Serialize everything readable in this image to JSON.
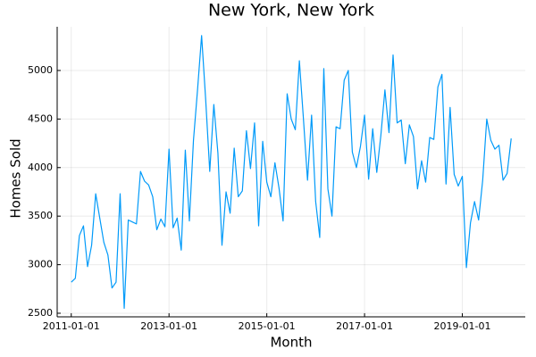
{
  "chart_data": {
    "type": "line",
    "title": "New York, New York",
    "x_label": "Month",
    "y_label": "Homes Sold",
    "x": [
      "2011-01-01",
      "2011-02-01",
      "2011-03-01",
      "2011-04-01",
      "2011-05-01",
      "2011-06-01",
      "2011-07-01",
      "2011-08-01",
      "2011-09-01",
      "2011-10-01",
      "2011-11-01",
      "2011-12-01",
      "2012-01-01",
      "2012-02-01",
      "2012-03-01",
      "2012-04-01",
      "2012-05-01",
      "2012-06-01",
      "2012-07-01",
      "2012-08-01",
      "2012-09-01",
      "2012-10-01",
      "2012-11-01",
      "2012-12-01",
      "2013-01-01",
      "2013-02-01",
      "2013-03-01",
      "2013-04-01",
      "2013-05-01",
      "2013-06-01",
      "2013-07-01",
      "2013-08-01",
      "2013-09-01",
      "2013-10-01",
      "2013-11-01",
      "2013-12-01",
      "2014-01-01",
      "2014-02-01",
      "2014-03-01",
      "2014-04-01",
      "2014-05-01",
      "2014-06-01",
      "2014-07-01",
      "2014-08-01",
      "2014-09-01",
      "2014-10-01",
      "2014-11-01",
      "2014-12-01",
      "2015-01-01",
      "2015-02-01",
      "2015-03-01",
      "2015-04-01",
      "2015-05-01",
      "2015-06-01",
      "2015-07-01",
      "2015-08-01",
      "2015-09-01",
      "2015-10-01",
      "2015-11-01",
      "2015-12-01",
      "2016-01-01",
      "2016-02-01",
      "2016-03-01",
      "2016-04-01",
      "2016-05-01",
      "2016-06-01",
      "2016-07-01",
      "2016-08-01",
      "2016-09-01",
      "2016-10-01",
      "2016-11-01",
      "2016-12-01",
      "2017-01-01",
      "2017-02-01",
      "2017-03-01",
      "2017-04-01",
      "2017-05-01",
      "2017-06-01",
      "2017-07-01",
      "2017-08-01",
      "2017-09-01",
      "2017-10-01",
      "2017-11-01",
      "2017-12-01",
      "2018-01-01",
      "2018-02-01",
      "2018-03-01",
      "2018-04-01",
      "2018-05-01",
      "2018-06-01",
      "2018-07-01",
      "2018-08-01",
      "2018-09-01",
      "2018-10-01",
      "2018-11-01",
      "2018-12-01",
      "2019-01-01",
      "2019-02-01",
      "2019-03-01",
      "2019-04-01",
      "2019-05-01",
      "2019-06-01",
      "2019-07-01",
      "2019-08-01",
      "2019-09-01",
      "2019-10-01",
      "2019-11-01",
      "2019-12-01",
      "2020-01-01"
    ],
    "values": [
      2820,
      2860,
      3300,
      3400,
      2980,
      3200,
      3730,
      3480,
      3230,
      3100,
      2760,
      2820,
      3730,
      2550,
      3460,
      3440,
      3420,
      3960,
      3860,
      3820,
      3700,
      3360,
      3470,
      3390,
      4190,
      3380,
      3480,
      3150,
      4180,
      3450,
      4280,
      4800,
      5360,
      4700,
      3960,
      4650,
      4150,
      3200,
      3750,
      3530,
      4200,
      3700,
      3760,
      4380,
      3990,
      4460,
      3400,
      4270,
      3850,
      3700,
      4050,
      3790,
      3450,
      4760,
      4500,
      4390,
      5100,
      4500,
      3870,
      4540,
      3650,
      3280,
      5020,
      3780,
      3500,
      4420,
      4400,
      4900,
      5000,
      4160,
      4000,
      4220,
      4540,
      3880,
      4400,
      3950,
      4330,
      4800,
      4360,
      5160,
      4460,
      4490,
      4040,
      4440,
      4320,
      3780,
      4070,
      3850,
      4310,
      4290,
      4830,
      4960,
      3830,
      4620,
      3930,
      3810,
      3910,
      2970,
      3430,
      3650,
      3460,
      3870,
      4500,
      4280,
      4190,
      4230,
      3870,
      3940,
      4300
    ],
    "color": "#009af9",
    "xticks": [
      "2011-01-01",
      "2013-01-01",
      "2015-01-01",
      "2017-01-01",
      "2019-01-01"
    ],
    "ylim": [
      2463,
      5450
    ],
    "yticks": [
      2500,
      3000,
      3500,
      4000,
      4500,
      5000
    ],
    "grid": true
  }
}
